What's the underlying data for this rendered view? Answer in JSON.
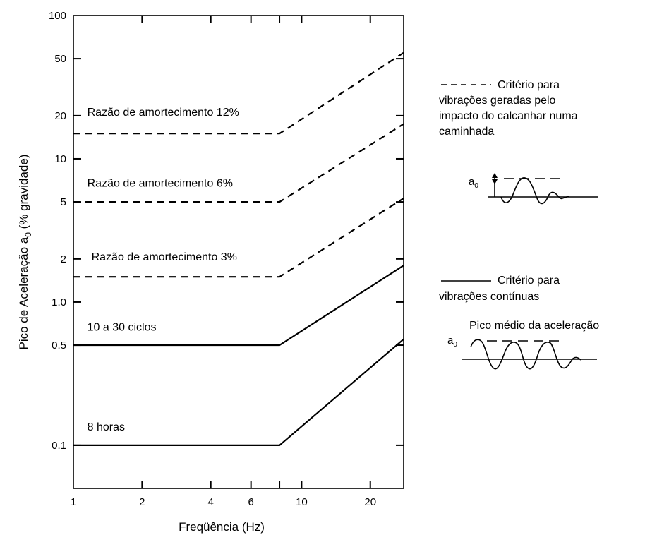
{
  "chart_data": {
    "type": "line",
    "title": "",
    "xlabel": "Freqüência (Hz)",
    "ylabel": "Pico de Aceleração a₀ (% gravidade)",
    "x_scale": "log",
    "y_scale": "log",
    "xlim": [
      1,
      28
    ],
    "ylim": [
      0.05,
      100
    ],
    "x_ticks": [
      {
        "value": 1,
        "label": "1"
      },
      {
        "value": 2,
        "label": "2"
      },
      {
        "value": 4,
        "label": "4"
      },
      {
        "value": 6,
        "label": "6"
      },
      {
        "value": 10,
        "label": "10"
      },
      {
        "value": 20,
        "label": "20"
      }
    ],
    "x_minor_ticks": [
      8
    ],
    "y_ticks": [
      {
        "value": 0.1,
        "label": "0.1"
      },
      {
        "value": 0.5,
        "label": "0.5"
      },
      {
        "value": 1,
        "label": "1.0"
      },
      {
        "value": 2,
        "label": "2"
      },
      {
        "value": 5,
        "label": "5"
      },
      {
        "value": 10,
        "label": "10"
      },
      {
        "value": 20,
        "label": "20"
      },
      {
        "value": 50,
        "label": "50"
      },
      {
        "value": 100,
        "label": "100"
      }
    ],
    "grid": false,
    "series": [
      {
        "name": "Razão de amortecimento 12%",
        "style": "dashed",
        "points": [
          [
            1,
            15
          ],
          [
            8,
            15
          ],
          [
            28,
            55
          ]
        ],
        "label_at": [
          1.15,
          20
        ]
      },
      {
        "name": "Razão de amortecimento 6%",
        "style": "dashed",
        "points": [
          [
            1,
            5
          ],
          [
            8,
            5
          ],
          [
            28,
            17.5
          ]
        ],
        "label_at": [
          1.15,
          6.4
        ]
      },
      {
        "name": "Razão de amortecimento 3%",
        "style": "dashed",
        "points": [
          [
            1,
            1.5
          ],
          [
            8,
            1.5
          ],
          [
            28,
            5.3
          ]
        ],
        "label_at": [
          1.2,
          1.95
        ]
      },
      {
        "name": "10 a 30 ciclos",
        "style": "solid",
        "points": [
          [
            1,
            0.5
          ],
          [
            8,
            0.5
          ],
          [
            28,
            1.8
          ]
        ],
        "label_at": [
          1.15,
          0.63
        ]
      },
      {
        "name": "8 horas",
        "style": "solid",
        "points": [
          [
            1,
            0.1
          ],
          [
            8,
            0.1
          ],
          [
            28,
            0.55
          ]
        ],
        "label_at": [
          1.15,
          0.127
        ]
      }
    ]
  },
  "legend": {
    "dashed_title": "Critério para",
    "dashed_line2": "vibrações geradas pelo",
    "dashed_line3": "impacto do calcanhar numa",
    "dashed_line4": "caminhada",
    "solid_title": "Critério para",
    "solid_line2": "vibrações contínuas",
    "inset1_label": "a",
    "inset1_sub": "0",
    "inset2_caption": "Pico médio da aceleração",
    "inset2_label": "a",
    "inset2_sub": "0"
  }
}
